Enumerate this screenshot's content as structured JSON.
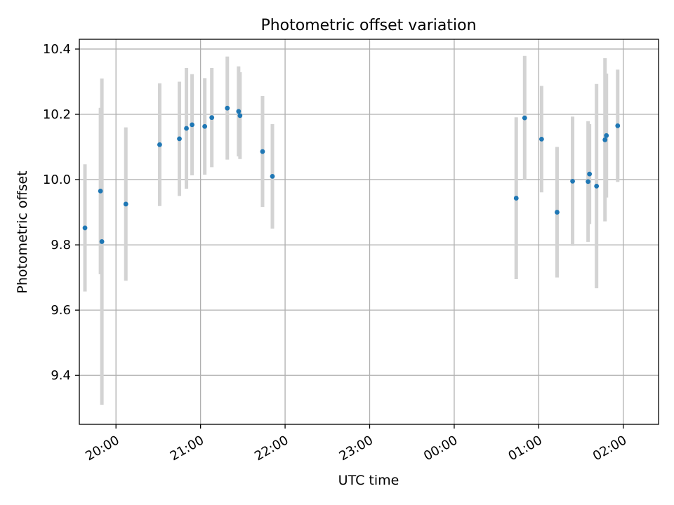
{
  "chart_data": {
    "type": "scatter",
    "title": "Photometric offset variation",
    "xlabel": "UTC time",
    "ylabel": "Photometric offset",
    "x_axis_kind": "time",
    "xlim": [
      "19:34",
      "02:25"
    ],
    "ylim": [
      9.25,
      10.43
    ],
    "grid": true,
    "xtick_labels": [
      "20:00",
      "21:00",
      "22:00",
      "23:00",
      "00:00",
      "01:00",
      "02:00"
    ],
    "xtick_times": [
      "20:00",
      "21:00",
      "22:00",
      "23:00",
      "00:00",
      "01:00",
      "02:00"
    ],
    "ytick_values": [
      9.4,
      9.6,
      9.8,
      10.0,
      10.2,
      10.4
    ],
    "ytick_labels": [
      "9.4",
      "9.6",
      "9.8",
      "10.0",
      "10.2",
      "10.4"
    ],
    "colors": {
      "point": "#1f77b4",
      "errorbar": "#d3d3d3",
      "grid": "#b0b0b0"
    },
    "points": [
      {
        "t": "19:38",
        "y": 9.852,
        "err": 0.195
      },
      {
        "t": "19:49",
        "y": 9.965,
        "err": 0.255
      },
      {
        "t": "19:50",
        "y": 9.81,
        "err": 0.5
      },
      {
        "t": "20:07",
        "y": 9.925,
        "err": 0.235
      },
      {
        "t": "20:31",
        "y": 10.107,
        "err": 0.188
      },
      {
        "t": "20:45",
        "y": 10.125,
        "err": 0.175
      },
      {
        "t": "20:50",
        "y": 10.157,
        "err": 0.185
      },
      {
        "t": "20:54",
        "y": 10.168,
        "err": 0.155
      },
      {
        "t": "21:03",
        "y": 10.163,
        "err": 0.148
      },
      {
        "t": "21:08",
        "y": 10.19,
        "err": 0.152
      },
      {
        "t": "21:19",
        "y": 10.219,
        "err": 0.158
      },
      {
        "t": "21:27",
        "y": 10.209,
        "err": 0.138
      },
      {
        "t": "21:28",
        "y": 10.196,
        "err": 0.133
      },
      {
        "t": "21:44",
        "y": 10.086,
        "err": 0.17
      },
      {
        "t": "21:51",
        "y": 10.01,
        "err": 0.16
      },
      {
        "t": "00:44",
        "y": 9.943,
        "err": 0.248
      },
      {
        "t": "00:50",
        "y": 10.189,
        "err": 0.19
      },
      {
        "t": "01:02",
        "y": 10.124,
        "err": 0.163
      },
      {
        "t": "01:13",
        "y": 9.9,
        "err": 0.2
      },
      {
        "t": "01:24",
        "y": 9.995,
        "err": 0.198
      },
      {
        "t": "01:35",
        "y": 9.994,
        "err": 0.185
      },
      {
        "t": "01:36",
        "y": 10.017,
        "err": 0.153
      },
      {
        "t": "01:41",
        "y": 9.98,
        "err": 0.313
      },
      {
        "t": "01:47",
        "y": 10.122,
        "err": 0.25
      },
      {
        "t": "01:48",
        "y": 10.135,
        "err": 0.19
      },
      {
        "t": "01:56",
        "y": 10.165,
        "err": 0.172
      }
    ]
  }
}
